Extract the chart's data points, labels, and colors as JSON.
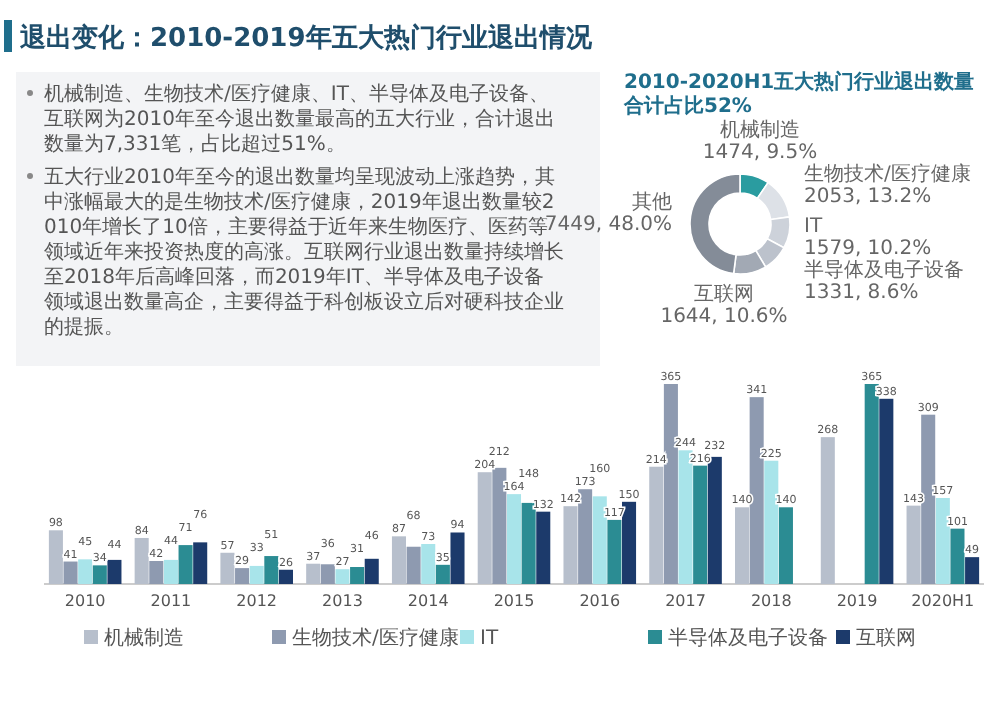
{
  "chart_data": [
    {
      "type": "other",
      "title": "退出变化：2010-2019年五大热门行业退出情况",
      "annotations": [
        "机械制造、生物技术/医疗健康、IT、半导体及电子设备、互联网为2010年至今退出数量最高的五大行业，合计退出数量为7,331笔，占比超过51%。",
        "五大行业2010年至今的退出数量均呈现波动上涨趋势，其中涨幅最大的是生物技术/医疗健康，2019年退出数量较2010年增长了10倍，主要得益于近年来生物医疗、医药等领域近年来投资热度的高涨。互联网行业退出数量持续增长至2018年后高峰回落，而2019年IT、半导体及电子设备领域退出数量高企，主要得益于科创板设立后对硬科技企业的提振。"
      ]
    },
    {
      "type": "donut",
      "title": "2010-2020H1五大热门行业退出数量合计占比52%",
      "categories": [
        "机械制造",
        "生物技术/医疗健康",
        "IT",
        "半导体及电子设备",
        "互联网",
        "其他"
      ],
      "values": [
        1474,
        2053,
        1579,
        1331,
        1644,
        7449
      ],
      "colors": [
        "#2a9ca0",
        "#dde1e7",
        "#cdd2da",
        "#bcc2cc",
        "#a2a9b4",
        "#848c98"
      ],
      "value_labels": [
        "1474, 9.5%",
        "2053, 13.2%",
        "1579, 10.2%",
        "1331, 8.6%",
        "1644, 10.6%",
        "7449, 48.0%"
      ]
    },
    {
      "type": "bar",
      "categories": [
        "2010",
        "2011",
        "2012",
        "2013",
        "2014",
        "2015",
        "2016",
        "2017",
        "2018",
        "2019",
        "2020H1"
      ],
      "data_labels": true,
      "legend": "bottom",
      "series": [
        {
          "name": "机械制造",
          "color": "#b7bfcc",
          "values": [
            98,
            84,
            57,
            37,
            87,
            204,
            142,
            214,
            140,
            268,
            143
          ]
        },
        {
          "name": "生物技术/医疗健康",
          "color": "#8e9ab0",
          "values": [
            41,
            42,
            29,
            36,
            68,
            212,
            173,
            365,
            341,
            null,
            309
          ]
        },
        {
          "name": "IT",
          "color": "#a8e4ea",
          "values": [
            45,
            44,
            33,
            27,
            73,
            164,
            160,
            244,
            225,
            null,
            157
          ]
        },
        {
          "name": "半导体及电子设备",
          "color": "#2b8c93",
          "values": [
            34,
            71,
            51,
            31,
            35,
            148,
            117,
            216,
            140,
            365,
            101
          ]
        },
        {
          "name": "互联网",
          "color": "#1c3a6b",
          "values": [
            44,
            76,
            26,
            46,
            94,
            132,
            150,
            232,
            null,
            338,
            49
          ]
        }
      ]
    }
  ]
}
